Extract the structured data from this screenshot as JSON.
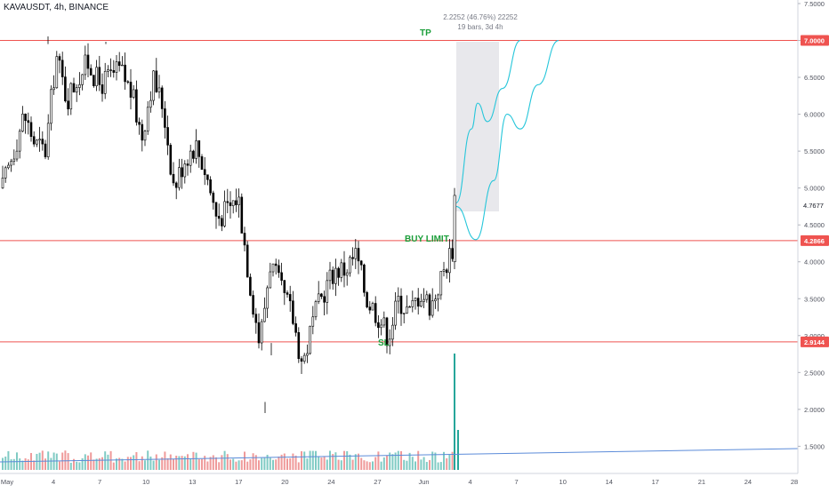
{
  "header": {
    "symbol": "KAVAUSDT, 4h, BINANCE"
  },
  "measure_tool": {
    "line1": "2.2252 (46.76%) 22252",
    "line2": "19 bars, 3d 4h"
  },
  "annotations": {
    "tp": "TP",
    "buy_limit": "BUY LIMIT",
    "sl": "SL"
  },
  "colors": {
    "up_candle": "#000000",
    "down_candle": "#000000",
    "level_line": "#ef5350",
    "projection": "#26c6da",
    "trend_line": "#5b8bd9",
    "annotation_text": "#1b9e3a",
    "volume_up": "#80cbc4",
    "volume_down": "#ef9a9a",
    "measure_box": "#e8e8ec",
    "current_price_label": "#131722"
  },
  "chart_data": {
    "type": "candlestick",
    "title": "KAVAUSDT, 4h, BINANCE",
    "ylim": [
      1.3,
      7.5
    ],
    "y_scale": "linear",
    "grid": false,
    "y_ticks": [
      "7.5000",
      "7.0000",
      "6.5000",
      "6.0000",
      "5.5000",
      "5.0000",
      "4.5000",
      "4.0000",
      "3.5000",
      "3.0000",
      "2.5000",
      "2.0000",
      "1.5000"
    ],
    "x_ticks": [
      "May",
      "4",
      "7",
      "10",
      "13",
      "17",
      "20",
      "24",
      "27",
      "Jun",
      "4",
      "7",
      "10",
      "14",
      "17",
      "21",
      "24",
      "28"
    ],
    "levels": [
      {
        "label": "TP",
        "price": 7.0,
        "price_label": "7.0000"
      },
      {
        "label": "BUY LIMIT",
        "price": 4.2866,
        "price_label": "4.2866"
      },
      {
        "label": "SL",
        "price": 2.9144,
        "price_label": "2.9144"
      }
    ],
    "current_price_label": "4.7677",
    "price_path": [
      5.0,
      5.5,
      6.0,
      5.6,
      5.5,
      6.8,
      6.2,
      6.5,
      6.7,
      6.4,
      6.5,
      6.6,
      6.3,
      5.7,
      6.5,
      6.1,
      5.0,
      5.4,
      5.6,
      5.2,
      4.6,
      4.7,
      4.9,
      3.8,
      2.9,
      4.0,
      3.6,
      3.3,
      2.6,
      3.2,
      3.6,
      3.9,
      3.9,
      4.1,
      3.5,
      3.3,
      3.0,
      3.5,
      3.3,
      3.6,
      3.4,
      3.8,
      4.2
    ],
    "projection_upper": [
      4.8,
      5.8,
      6.15,
      5.9,
      6.35,
      7.0
    ],
    "projection_lower": [
      4.75,
      4.3,
      5.1,
      6.0,
      5.8,
      6.4,
      7.0
    ],
    "volume_spike": true
  }
}
